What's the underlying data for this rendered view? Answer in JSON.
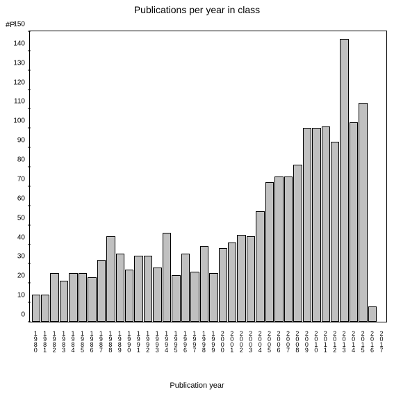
{
  "chart": {
    "type": "bar",
    "title": "Publications per year in class",
    "title_fontsize": 14,
    "ylabel": "#P",
    "xlabel": "Publication year",
    "label_fontsize": 11,
    "tick_fontsize": 10,
    "background_color": "#ffffff",
    "bar_color": "#c0c0c0",
    "bar_border_color": "#000000",
    "axis_color": "#000000",
    "ylim": [
      0,
      150
    ],
    "ytick_step": 10,
    "yticks": [
      0,
      10,
      20,
      30,
      40,
      50,
      60,
      70,
      80,
      90,
      100,
      110,
      120,
      130,
      140,
      150
    ],
    "categories": [
      "1980",
      "1981",
      "1982",
      "1983",
      "1984",
      "1985",
      "1986",
      "1987",
      "1988",
      "1989",
      "1990",
      "1991",
      "1992",
      "1993",
      "1994",
      "1995",
      "1996",
      "1997",
      "1998",
      "1999",
      "2000",
      "2001",
      "2002",
      "2003",
      "2004",
      "2005",
      "2006",
      "2007",
      "2008",
      "2009",
      "2010",
      "2011",
      "2012",
      "2013",
      "2014",
      "2015",
      "2016",
      "2017"
    ],
    "values": [
      14,
      14,
      25,
      21,
      25,
      25,
      23,
      32,
      44,
      35,
      27,
      34,
      34,
      28,
      46,
      24,
      35,
      26,
      39,
      25,
      38,
      41,
      45,
      44,
      57,
      72,
      75,
      75,
      81,
      100,
      100,
      101,
      93,
      146,
      103,
      113,
      8,
      0
    ],
    "bar_width": 0.9
  }
}
